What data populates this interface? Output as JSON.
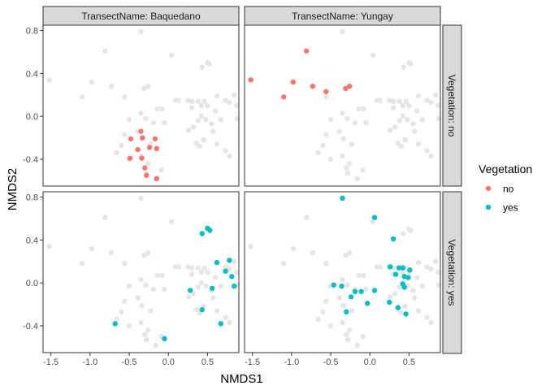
{
  "chart_data": {
    "type": "scatter",
    "xlabel": "NMDS1",
    "ylabel": "NMDS2",
    "xlim": [
      -1.6,
      0.9
    ],
    "ylim": [
      -0.65,
      0.85
    ],
    "x_ticks": [
      "-1.5",
      "-1.0",
      "-0.5",
      "0.0",
      "0.5"
    ],
    "x_tick_values": [
      -1.5,
      -1.0,
      -0.5,
      0.0,
      0.5
    ],
    "y_ticks": [
      "-0.4",
      "0.0",
      "0.4",
      "0.8"
    ],
    "y_tick_values": [
      -0.4,
      0.0,
      0.4,
      0.8
    ],
    "grid": false,
    "facet_columns": [
      "TransectName: Baquedano",
      "TransectName: Yungay"
    ],
    "facet_rows": [
      "Vegetation: no",
      "Vegetation: yes"
    ],
    "legend": {
      "title": "Vegetation",
      "position": "right",
      "entries": [
        {
          "label": "no",
          "color": "#F8766D"
        },
        {
          "label": "yes",
          "color": "#00BFC4"
        }
      ]
    },
    "background_color": "#E5E5E5",
    "background_points": [
      [
        -1.52,
        0.34
      ],
      [
        -0.35,
        0.79
      ],
      [
        -0.81,
        0.61
      ],
      [
        0.04,
        0.57
      ],
      [
        -1.1,
        0.18
      ],
      [
        -0.98,
        0.32
      ],
      [
        -0.73,
        0.28
      ],
      [
        -0.31,
        0.26
      ],
      [
        -0.26,
        0.28
      ],
      [
        -0.56,
        0.18
      ],
      [
        0.13,
        0.15
      ],
      [
        0.09,
        0.15
      ],
      [
        -0.14,
        0.07
      ],
      [
        -0.08,
        0.07
      ],
      [
        -0.35,
        0.03
      ],
      [
        -0.29,
        -0.02
      ],
      [
        -0.5,
        -0.03
      ],
      [
        -0.19,
        -0.06
      ],
      [
        -0.05,
        -0.06
      ],
      [
        -0.39,
        -0.14
      ],
      [
        -0.56,
        -0.17
      ],
      [
        -0.34,
        -0.21
      ],
      [
        -0.6,
        -0.27
      ],
      [
        -0.23,
        -0.26
      ],
      [
        -0.66,
        -0.34
      ],
      [
        -0.35,
        -0.37
      ],
      [
        -0.5,
        -0.4
      ],
      [
        -0.26,
        -0.44
      ],
      [
        -0.3,
        -0.48
      ],
      [
        -0.09,
        -0.5
      ],
      [
        -0.28,
        -0.53
      ],
      [
        -0.16,
        -0.58
      ],
      [
        0.25,
        0.15
      ],
      [
        0.3,
        0.14
      ],
      [
        0.38,
        0.14
      ],
      [
        0.46,
        0.14
      ],
      [
        0.42,
        0.1
      ],
      [
        0.5,
        0.1
      ],
      [
        0.62,
        0.19
      ],
      [
        0.73,
        0.15
      ],
      [
        0.6,
        0.05
      ],
      [
        0.3,
        0.08
      ],
      [
        0.42,
        0.0
      ],
      [
        0.38,
        -0.04
      ],
      [
        0.48,
        -0.03
      ],
      [
        0.55,
        -0.07
      ],
      [
        0.67,
        -0.03
      ],
      [
        0.84,
        0.2
      ],
      [
        0.87,
        0.1
      ],
      [
        0.78,
        0.13
      ],
      [
        0.88,
        -0.02
      ],
      [
        0.5,
        0.5
      ],
      [
        0.52,
        0.49
      ],
      [
        0.43,
        0.46
      ],
      [
        0.26,
        -0.13
      ],
      [
        0.32,
        -0.1
      ],
      [
        0.36,
        -0.25
      ],
      [
        0.4,
        -0.28
      ],
      [
        0.45,
        -0.22
      ],
      [
        0.57,
        -0.14
      ],
      [
        0.62,
        -0.26
      ],
      [
        0.73,
        -0.32
      ],
      [
        0.78,
        -0.37
      ]
    ],
    "panels": [
      {
        "column": "TransectName: Baquedano",
        "row": "Vegetation: no",
        "series": "no",
        "points": [
          [
            -0.35,
            -0.14
          ],
          [
            -0.48,
            -0.21
          ],
          [
            -0.33,
            -0.2
          ],
          [
            -0.17,
            -0.21
          ],
          [
            -0.39,
            -0.31
          ],
          [
            -0.24,
            -0.29
          ],
          [
            -0.15,
            -0.3
          ],
          [
            -0.49,
            -0.39
          ],
          [
            -0.34,
            -0.39
          ],
          [
            -0.3,
            -0.48
          ],
          [
            -0.28,
            -0.55
          ],
          [
            -0.15,
            -0.58
          ]
        ]
      },
      {
        "column": "TransectName: Yungay",
        "row": "Vegetation: no",
        "series": "no",
        "points": [
          [
            -1.52,
            0.34
          ],
          [
            -0.81,
            0.61
          ],
          [
            -0.98,
            0.32
          ],
          [
            -0.73,
            0.28
          ],
          [
            -1.1,
            0.18
          ],
          [
            -0.56,
            0.23
          ],
          [
            -0.31,
            0.26
          ],
          [
            -0.26,
            0.28
          ]
        ]
      },
      {
        "column": "TransectName: Baquedano",
        "row": "Vegetation: yes",
        "series": "yes",
        "points": [
          [
            0.5,
            0.51
          ],
          [
            0.53,
            0.49
          ],
          [
            0.43,
            0.46
          ],
          [
            0.62,
            0.19
          ],
          [
            0.78,
            0.21
          ],
          [
            0.73,
            0.11
          ],
          [
            0.81,
            0.06
          ],
          [
            0.84,
            -0.03
          ],
          [
            0.56,
            -0.05
          ],
          [
            0.28,
            -0.07
          ],
          [
            0.43,
            -0.25
          ],
          [
            0.67,
            -0.38
          ],
          [
            -0.68,
            -0.38
          ],
          [
            -0.05,
            -0.52
          ]
        ]
      },
      {
        "column": "TransectName: Yungay",
        "row": "Vegetation: yes",
        "series": "yes",
        "points": [
          [
            -0.35,
            0.79
          ],
          [
            0.06,
            0.61
          ],
          [
            0.3,
            0.41
          ],
          [
            0.26,
            0.15
          ],
          [
            0.37,
            0.14
          ],
          [
            0.42,
            0.14
          ],
          [
            0.51,
            0.12
          ],
          [
            0.33,
            0.08
          ],
          [
            0.44,
            0.06
          ],
          [
            0.49,
            0.05
          ],
          [
            0.42,
            -0.01
          ],
          [
            -0.46,
            -0.02
          ],
          [
            -0.36,
            -0.03
          ],
          [
            0.06,
            -0.07
          ],
          [
            -0.19,
            -0.08
          ],
          [
            -0.11,
            -0.08
          ],
          [
            0.44,
            -0.04
          ],
          [
            -0.24,
            -0.13
          ],
          [
            0.25,
            -0.18
          ],
          [
            -0.03,
            -0.19
          ],
          [
            0.36,
            -0.23
          ],
          [
            -0.3,
            -0.27
          ],
          [
            0.46,
            -0.29
          ]
        ]
      }
    ]
  }
}
